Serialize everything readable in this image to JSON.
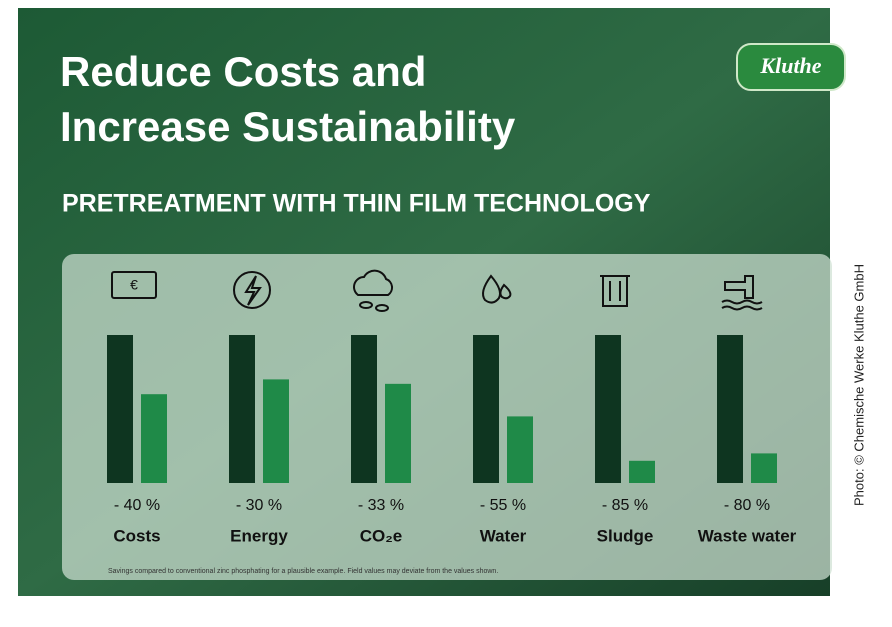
{
  "logo": "Kluthe",
  "credit": "Photo: © Chemische Werke Kluthe GmbH",
  "chart_data": {
    "type": "bar",
    "title": [
      "Reduce Costs and",
      "Increase Sustainability"
    ],
    "subtitle": "PRETREATMENT WITH THIN FILM TECHNOLOGY",
    "categories": [
      "Costs",
      "Energy",
      "CO₂e",
      "Water",
      "Sludge",
      "Waste water"
    ],
    "series": [
      {
        "color": "#0e3520",
        "values": [
          100,
          100,
          100,
          100,
          100,
          100
        ]
      },
      {
        "color": "#1f8a48",
        "values": [
          60,
          70,
          67,
          45,
          15,
          20
        ]
      }
    ],
    "savings": {
      "values": [
        -40,
        -30,
        -33,
        -55,
        -85,
        -80
      ],
      "value_labels": [
        "- 40 %",
        "- 30 %",
        "- 33 %",
        "- 55 %",
        "- 85 %",
        "- 80 %"
      ]
    },
    "ylim": [
      0,
      100
    ],
    "note": "Savings compared to conventional zinc phosphating for a plausible example. Field values may deviate from the values shown."
  }
}
